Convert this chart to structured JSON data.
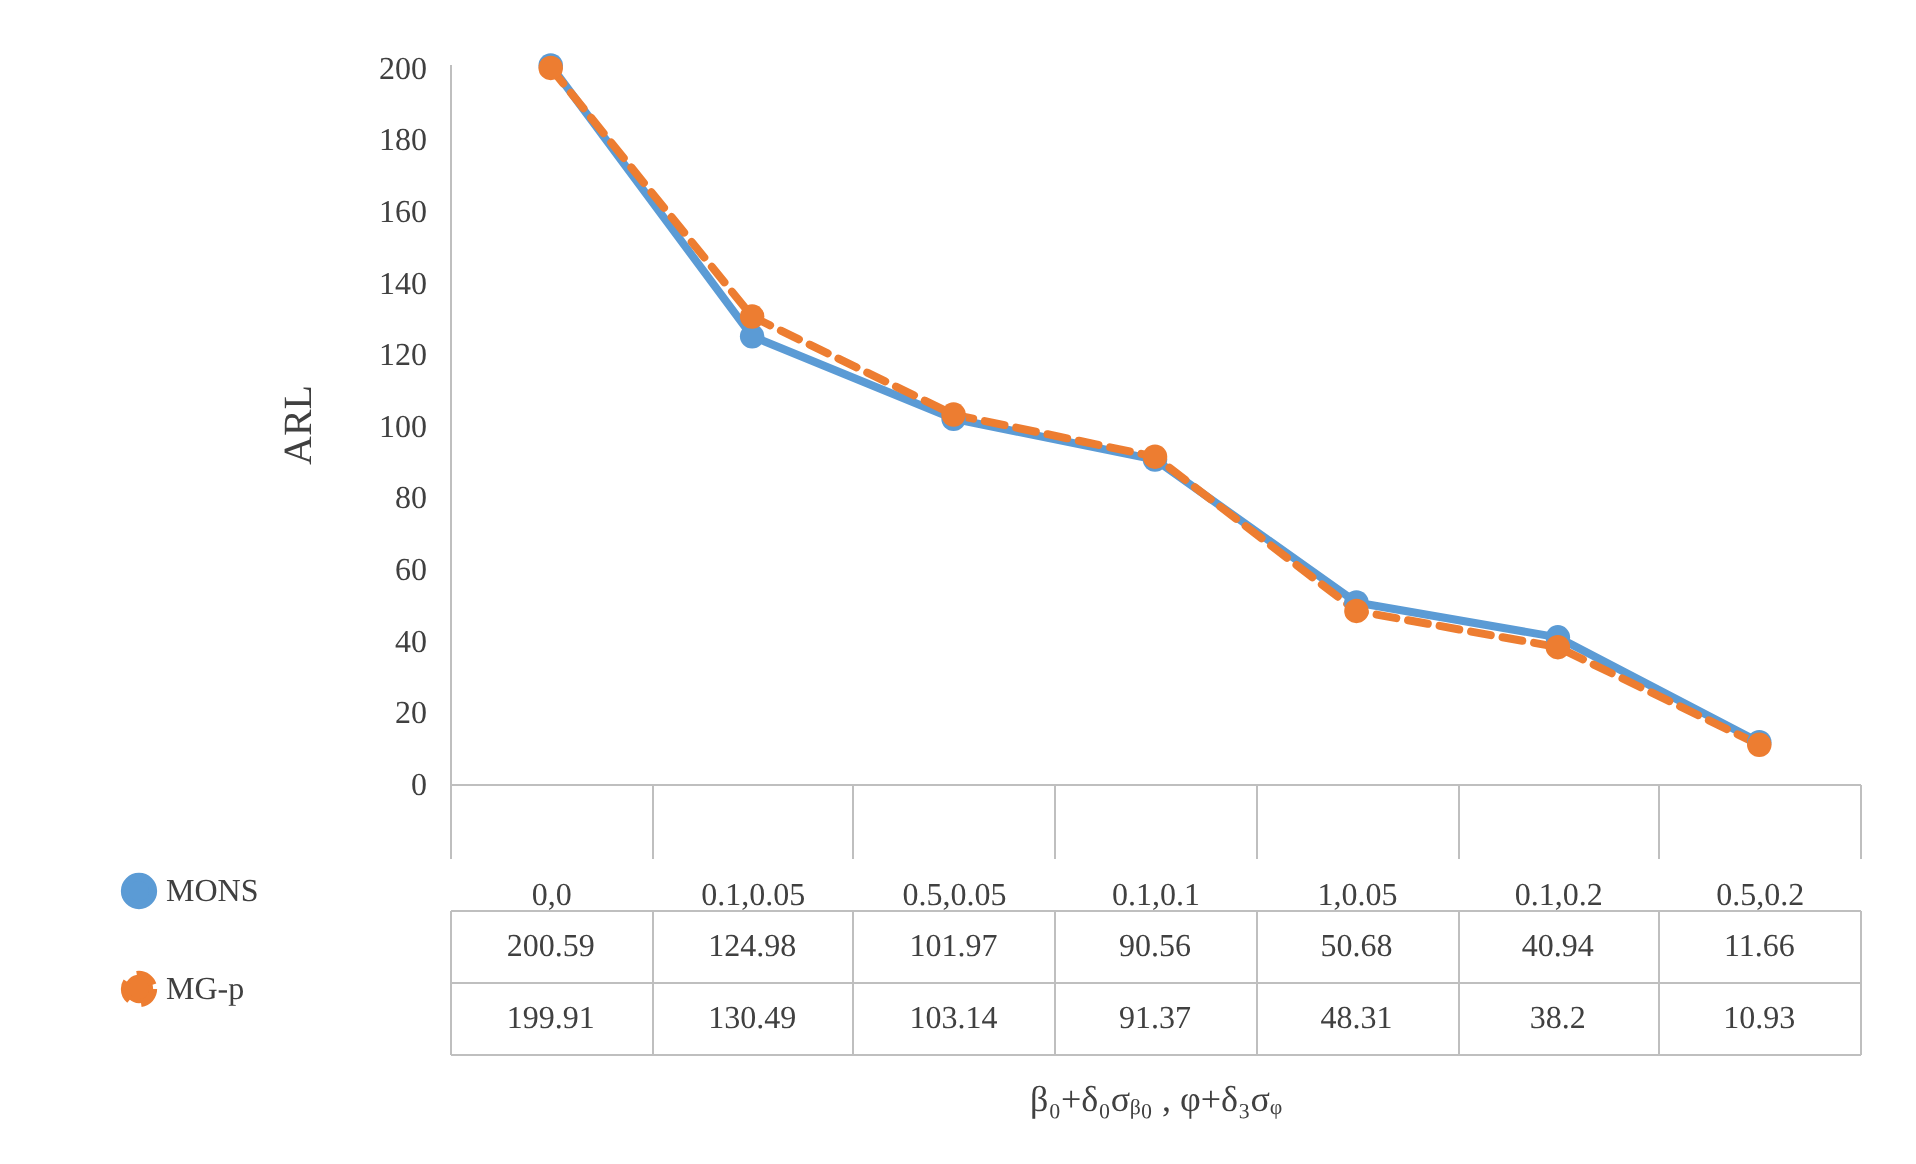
{
  "chart_data": {
    "type": "line",
    "ylabel": "ARL",
    "xlabel": "β₀+δ₀σᵦ₀ , φ+δ₃σᵩ",
    "categories": [
      "0,0",
      "0.1,0.05",
      "0.5,0.05",
      "0.1,0.1",
      "1,0.05",
      "0.1,0.2",
      "0.5,0.2"
    ],
    "series": [
      {
        "name": "MONS",
        "color": "#5b9bd5",
        "line_style": "solid",
        "values": [
          200.59,
          124.98,
          101.97,
          90.56,
          50.68,
          40.94,
          11.66
        ]
      },
      {
        "name": "MG-p",
        "color": "#ed7d31",
        "line_style": "dashed",
        "values": [
          199.91,
          130.49,
          103.14,
          91.37,
          48.31,
          38.2,
          10.93
        ]
      }
    ],
    "ylim": [
      0,
      201
    ],
    "yticks": [
      0,
      20,
      40,
      60,
      80,
      100,
      120,
      140,
      160,
      180,
      200
    ],
    "marker": "circle",
    "data_labels": true,
    "legend": "bottom left",
    "grid": false
  }
}
